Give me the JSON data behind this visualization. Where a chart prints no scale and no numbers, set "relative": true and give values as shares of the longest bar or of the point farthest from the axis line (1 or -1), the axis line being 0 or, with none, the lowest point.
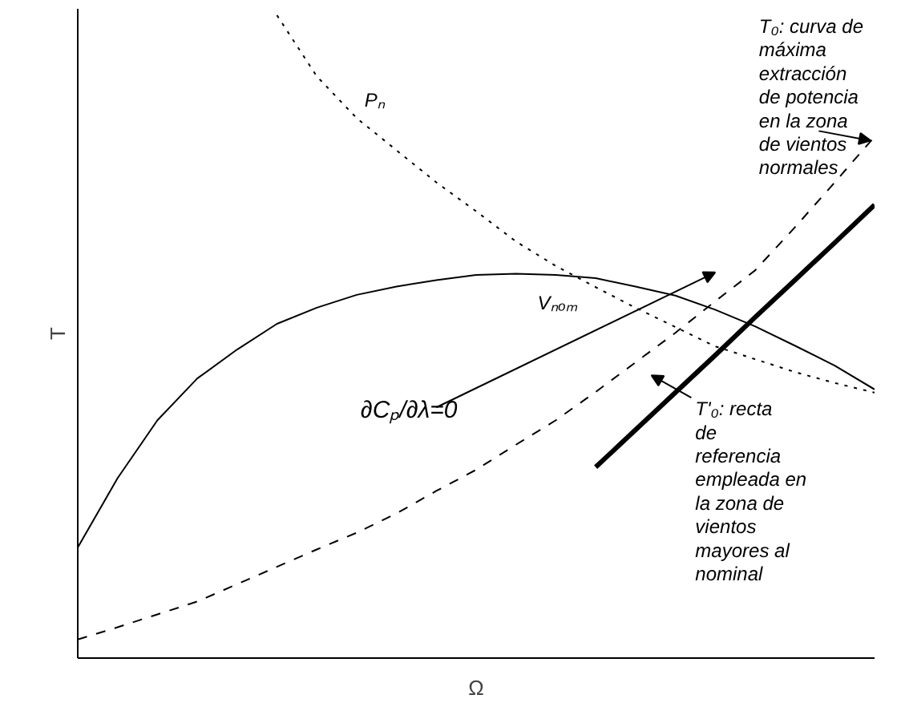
{
  "chart_data": {
    "type": "line",
    "relative": true,
    "xlabel": "Ω",
    "ylabel": "T",
    "marker": "none",
    "categories": [
      null,
      null,
      null,
      null,
      null,
      null,
      null,
      null,
      null,
      null,
      null,
      null,
      null,
      null,
      null,
      null,
      null,
      null,
      null,
      null,
      null
    ],
    "series": [
      {
        "name": "Pₙ",
        "color": "#000000",
        "line_style": "dotted",
        "values": [
          null,
          null,
          null,
          null,
          null,
          1.0,
          0.905,
          0.84,
          0.79,
          0.74,
          0.695,
          0.648,
          0.61,
          0.577,
          0.545,
          0.515,
          0.485,
          0.465,
          0.445,
          0.428,
          0.413
        ]
      },
      {
        "name": "Vₙₒₘ",
        "color": "#000000",
        "line_style": "solid",
        "values": [
          0.172,
          0.28,
          0.37,
          0.435,
          0.48,
          0.52,
          0.545,
          0.565,
          0.578,
          0.588,
          0.596,
          0.598,
          0.596,
          0.591,
          0.578,
          0.564,
          0.542,
          0.516,
          0.486,
          0.455,
          0.418
        ]
      },
      {
        "color": "#000000",
        "line_style": "dashed",
        "values": [
          0.029,
          0.048,
          0.068,
          0.088,
          0.115,
          0.142,
          0.169,
          0.195,
          0.225,
          0.26,
          0.293,
          0.332,
          0.37,
          0.414,
          0.46,
          0.506,
          0.555,
          0.603,
          0.67,
          0.74,
          0.811
        ]
      },
      {
        "color": "#000000",
        "line_style": "solid",
        "values": [
          null,
          null,
          null,
          null,
          null,
          null,
          null,
          null,
          null,
          null,
          null,
          null,
          null,
          0.297,
          0.355,
          0.413,
          0.471,
          0.53,
          0.588,
          0.646,
          0.705
        ]
      }
    ],
    "annotations": [
      "T₀: curva de máxima extracción de potencia en la zona de vientos normales",
      "∂Cₚ/∂λ=0",
      "T'₀: recta de referencia empleada en la zona de vientos mayores al nominal"
    ]
  }
}
